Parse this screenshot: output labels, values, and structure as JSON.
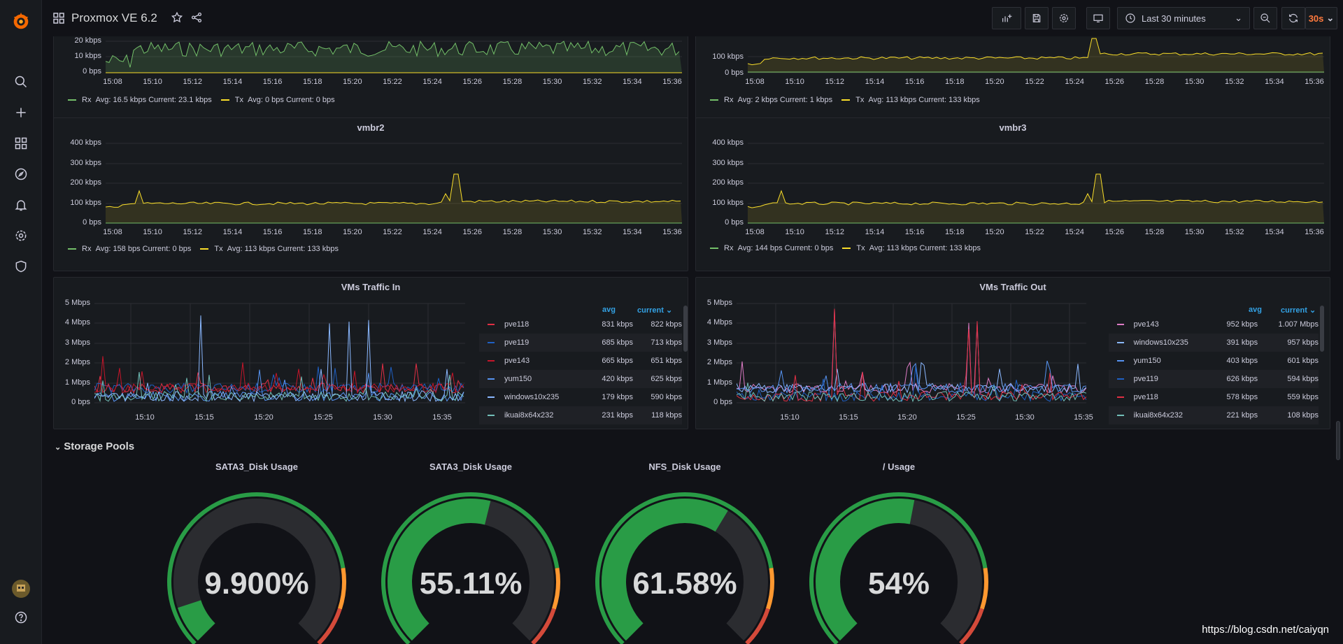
{
  "topbar": {
    "title": "Proxmox VE 6.2",
    "time_range": "Last 30 minutes",
    "refresh": "30s"
  },
  "colors": {
    "rx": "#73bf69",
    "tx": "#fade2a",
    "accent": "#f2495c",
    "blue": "#33a2e5",
    "gauge_green": "#299c46",
    "gauge_orange": "#ff9830",
    "gauge_red": "#d44a3a"
  },
  "panels": {
    "top_left": {
      "yticks": [
        "20 kbps",
        "10 kbps",
        "0 bps"
      ],
      "legend": {
        "rx": "Rx",
        "rx_stats": "Avg: 16.5 kbps  Current: 23.1 kbps",
        "tx": "Tx",
        "tx_stats": "Avg: 0 bps  Current: 0 bps"
      }
    },
    "top_right": {
      "yticks": [
        "100 kbps",
        "0 bps"
      ],
      "legend": {
        "rx": "Rx",
        "rx_stats": "Avg: 2 kbps  Current: 1 kbps",
        "tx": "Tx",
        "tx_stats": "Avg: 113 kbps  Current: 133 kbps"
      }
    },
    "vmbr2": {
      "title": "vmbr2",
      "yticks": [
        "400 kbps",
        "300 kbps",
        "200 kbps",
        "100 kbps",
        "0 bps"
      ],
      "legend": {
        "rx": "Rx",
        "rx_stats": "Avg: 158 bps  Current: 0 bps",
        "tx": "Tx",
        "tx_stats": "Avg: 113 kbps  Current: 133 kbps"
      }
    },
    "vmbr3": {
      "title": "vmbr3",
      "yticks": [
        "400 kbps",
        "300 kbps",
        "200 kbps",
        "100 kbps",
        "0 bps"
      ],
      "legend": {
        "rx": "Rx",
        "rx_stats": "Avg: 144 bps  Current: 0 bps",
        "tx": "Tx",
        "tx_stats": "Avg: 113 kbps  Current: 133 kbps"
      }
    },
    "vms_in": {
      "title": "VMs Traffic In",
      "yticks": [
        "5 Mbps",
        "4 Mbps",
        "3 Mbps",
        "2 Mbps",
        "1 Mbps",
        "0 bps"
      ],
      "xticks": [
        "15:10",
        "15:15",
        "15:20",
        "15:25",
        "15:30",
        "15:35"
      ],
      "col_avg": "avg",
      "col_current": "current",
      "rows": [
        {
          "name": "pve118",
          "avg": "831 kbps",
          "current": "822 kbps",
          "color": "#e02f44"
        },
        {
          "name": "pve119",
          "avg": "685 kbps",
          "current": "713 kbps",
          "color": "#1f60c4"
        },
        {
          "name": "pve143",
          "avg": "665 kbps",
          "current": "651 kbps",
          "color": "#c4162a"
        },
        {
          "name": "yum150",
          "avg": "420 kbps",
          "current": "625 kbps",
          "color": "#5794f2"
        },
        {
          "name": "windows10x235",
          "avg": "179 kbps",
          "current": "590 kbps",
          "color": "#8ab8ff"
        },
        {
          "name": "ikuai8x64x232",
          "avg": "231 kbps",
          "current": "118 kbps",
          "color": "#73bfb8"
        }
      ]
    },
    "vms_out": {
      "title": "VMs Traffic Out",
      "yticks": [
        "5 Mbps",
        "4 Mbps",
        "3 Mbps",
        "2 Mbps",
        "1 Mbps",
        "0 bps"
      ],
      "xticks": [
        "15:10",
        "15:15",
        "15:20",
        "15:25",
        "15:30",
        "15:35"
      ],
      "col_avg": "avg",
      "col_current": "current",
      "rows": [
        {
          "name": "pve143",
          "avg": "952 kbps",
          "current": "1.007 Mbps",
          "color": "#de7cc6"
        },
        {
          "name": "windows10x235",
          "avg": "391 kbps",
          "current": "957 kbps",
          "color": "#8ab8ff"
        },
        {
          "name": "yum150",
          "avg": "403 kbps",
          "current": "601 kbps",
          "color": "#5794f2"
        },
        {
          "name": "pve119",
          "avg": "626 kbps",
          "current": "594 kbps",
          "color": "#1f60c4"
        },
        {
          "name": "pve118",
          "avg": "578 kbps",
          "current": "559 kbps",
          "color": "#e02f44"
        },
        {
          "name": "ikuai8x64x232",
          "avg": "221 kbps",
          "current": "108 kbps",
          "color": "#73bfb8"
        }
      ]
    }
  },
  "xticks_net": [
    "15:08",
    "15:10",
    "15:12",
    "15:14",
    "15:16",
    "15:18",
    "15:20",
    "15:22",
    "15:24",
    "15:26",
    "15:28",
    "15:30",
    "15:32",
    "15:34",
    "15:36"
  ],
  "storage": {
    "title": "Storage Pools"
  },
  "chart_data": {
    "type": "gauge",
    "gauges": [
      {
        "title": "SATA3_Disk Usage",
        "display": "9.900%",
        "value": 9.9
      },
      {
        "title": "SATA3_Disk Usage",
        "display": "55.11%",
        "value": 55.11
      },
      {
        "title": "NFS_Disk Usage",
        "display": "61.58%",
        "value": 61.58
      },
      {
        "title": "/ Usage",
        "display": "54%",
        "value": 54
      }
    ],
    "thresholds": [
      {
        "to": 80,
        "color": "#299c46"
      },
      {
        "to": 90,
        "color": "#ff9830"
      },
      {
        "to": 100,
        "color": "#d44a3a"
      }
    ],
    "range": [
      0,
      100
    ]
  },
  "watermark": "https://blog.csdn.net/caiyqn"
}
